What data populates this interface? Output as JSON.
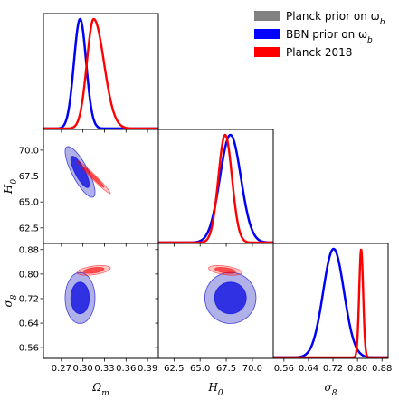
{
  "chart_data": {
    "type": "corner",
    "parameters": [
      {
        "key": "om",
        "label": "Ω",
        "label_sub": "m",
        "range": [
          0.245,
          0.405
        ],
        "ticks": [
          0.27,
          0.3,
          0.33,
          0.36,
          0.39
        ],
        "tick_labels": [
          "0.27",
          "0.30",
          "0.33",
          "0.36",
          "0.39"
        ]
      },
      {
        "key": "h0",
        "label": "H",
        "label_sub": "0",
        "range": [
          61.0,
          72.0
        ],
        "ticks": [
          62.5,
          65.0,
          67.5,
          70.0
        ],
        "tick_labels": [
          "62.5",
          "65.0",
          "67.5",
          "70.0"
        ]
      },
      {
        "key": "s8",
        "label": "σ",
        "label_sub": "8",
        "range": [
          0.525,
          0.9
        ],
        "ticks": [
          0.56,
          0.64,
          0.72,
          0.8,
          0.88
        ],
        "tick_labels": [
          "0.56",
          "0.64",
          "0.72",
          "0.80",
          "0.88"
        ]
      }
    ],
    "series": [
      {
        "name": "Planck prior on ω",
        "name_sub": "b",
        "color": "#808080",
        "mean": {
          "om": 0.296,
          "h0": 67.9,
          "s8": 0.722
        },
        "sd": {
          "om": 0.0085,
          "h0": 1.0,
          "s8": 0.034
        },
        "corr": {
          "om_h0": -0.8,
          "om_s8": 0.0,
          "h0_s8": 0.0
        }
      },
      {
        "name": "BBN prior on ω",
        "name_sub": "b",
        "color": "#0000ff",
        "mean": {
          "om": 0.296,
          "h0": 67.9,
          "s8": 0.722
        },
        "sd": {
          "om": 0.0085,
          "h0": 1.0,
          "s8": 0.034
        },
        "corr": {
          "om_h0": -0.8,
          "om_s8": 0.0,
          "h0_s8": 0.0
        }
      },
      {
        "name": "Planck 2018",
        "name_sub": "",
        "color": "#ff0000",
        "mean": {
          "om": 0.315,
          "h0": 67.4,
          "s8": 0.812
        },
        "sd": {
          "om": 0.0095,
          "h0": 0.65,
          "s8": 0.0065
        },
        "corr": {
          "om_h0": -0.98,
          "om_s8": 0.45,
          "h0_s8": -0.45
        }
      }
    ],
    "contour_levels": [
      "68%",
      "95%"
    ],
    "legend_position": "top-right",
    "grid": false
  }
}
